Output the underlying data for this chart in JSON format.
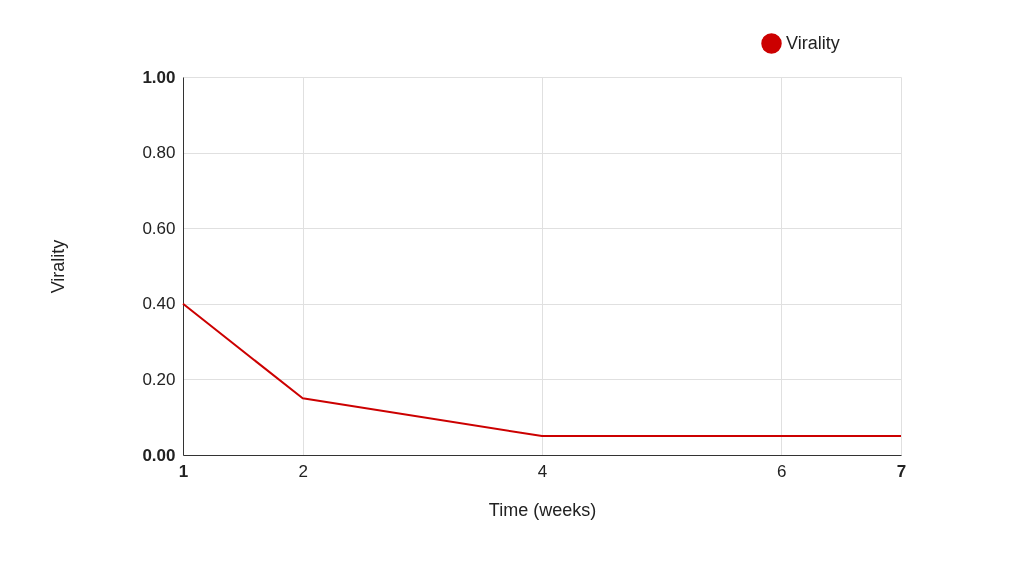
{
  "chart_data": {
    "type": "line",
    "xlabel": "Time (weeks)",
    "ylabel": "Virality",
    "x": [
      1,
      2,
      4,
      7
    ],
    "series": [
      {
        "name": "Virality",
        "color": "#cc0000",
        "values": [
          0.4,
          0.15,
          0.05,
          0.05
        ]
      }
    ],
    "xlim": [
      1,
      7
    ],
    "xticks": [
      1,
      2,
      4,
      6,
      7
    ],
    "ylim": [
      0,
      1
    ],
    "yticks": [
      {
        "value": 0,
        "label": "0.00"
      },
      {
        "value": 0.2,
        "label": "0.20"
      },
      {
        "value": 0.4,
        "label": "0.40"
      },
      {
        "value": 0.6,
        "label": "0.60"
      },
      {
        "value": 0.8,
        "label": "0.80"
      },
      {
        "value": 1,
        "label": "1.00"
      }
    ],
    "grid": true,
    "legend": "top right",
    "marker": "none"
  }
}
